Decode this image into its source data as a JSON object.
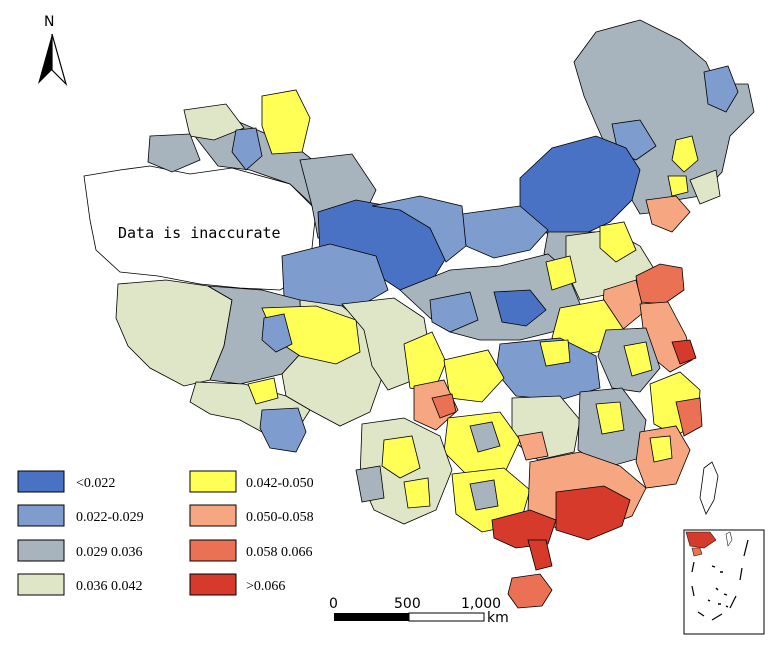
{
  "north_arrow": {
    "label": "N"
  },
  "annotation": {
    "text": "Data is inaccurate"
  },
  "legend": {
    "items": [
      {
        "label": "<0.022",
        "color": "#4a72c4"
      },
      {
        "label": "0.022-0.029",
        "color": "#7f9ccf"
      },
      {
        "label": "0.029 0.036",
        "color": "#a7b3bd"
      },
      {
        "label": "0.036 0.042",
        "color": "#dfe6c7"
      },
      {
        "label": "0.042-0.050",
        "color": "#ffff55"
      },
      {
        "label": "0.050-0.058",
        "color": "#f6a782"
      },
      {
        "label": "0.058 0.066",
        "color": "#ea7153"
      },
      {
        "label": ">0.066",
        "color": "#d63a2b"
      }
    ]
  },
  "scale_bar": {
    "ticks": [
      "0",
      "500",
      "1,000"
    ],
    "unit": "km"
  },
  "colors": {
    "background": "#ffffff",
    "no_data": "#ffffff",
    "border": "#000000"
  }
}
